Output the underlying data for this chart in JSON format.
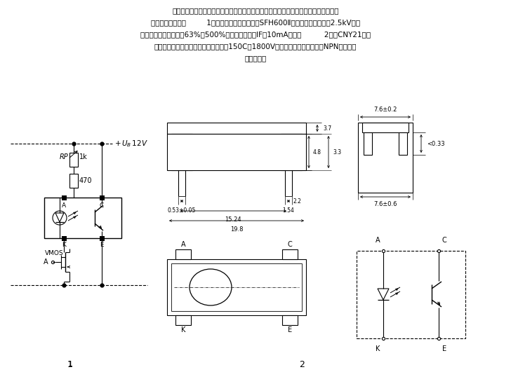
{
  "bg_color": "#ffffff",
  "text_color": "#000000",
  "line_color": "#000000",
  "fig1_label": "1",
  "fig2_label": "2",
  "ub_label": "+ U_B 12V",
  "rp_label": "RP",
  "r1k_label": "1k",
  "r470_label": "470",
  "A_label1": "A",
  "K_label1": "K",
  "C_label1": "C",
  "E_label1": "E",
  "VMOS_label": "VMOS",
  "dim_053": "0.53±0.05",
  "dim_154": "1.54",
  "dim_1524": "15.24",
  "dim_22": "2.2",
  "dim_198": "19.8",
  "dim_37": "3.7",
  "dim_48": "4.8",
  "dim_33": "3.3",
  "dim_762": "7.6±0.2",
  "dim_033": "<0.33",
  "dim_766": "7.6±0.6",
  "sym_A": "A",
  "sym_C": "C",
  "sym_K": "K",
  "sym_E": "E",
  "header_lines": [
    "在很多情况下要求控制电路和功率电路电位隔离，没有电的直接联系。这时可采用由光",
    "耦隔离的电路（图         1）。有些型号的光耦，如SFH600Ⅱ，其隔离电压可高达2.5kV，并",
    "且具有高的耦合系数（63%～500%）和小的电流（IF＝10mA）。图          2示出CNY21型光",
    "耦器的外形尺寸和符号。其隔离电压为150C～1800V。由砲化镳发光二极管和NPN硅光敏三",
    "极管组成。"
  ]
}
